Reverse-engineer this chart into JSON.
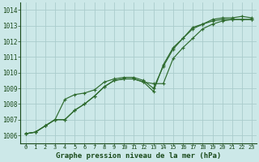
{
  "xlabel": "Graphe pression niveau de la mer (hPa)",
  "background_color": "#cce8e8",
  "grid_color": "#aacccc",
  "line_color": "#2d6a2d",
  "marker_color": "#2d6a2d",
  "text_color": "#1a4a1a",
  "ylim_min": 1005.5,
  "ylim_max": 1014.5,
  "xlim_min": -0.5,
  "xlim_max": 23.5,
  "yticks": [
    1006,
    1007,
    1008,
    1009,
    1010,
    1011,
    1012,
    1013,
    1014
  ],
  "xticks": [
    0,
    1,
    2,
    3,
    4,
    5,
    6,
    7,
    8,
    9,
    10,
    11,
    12,
    13,
    14,
    15,
    16,
    17,
    18,
    19,
    20,
    21,
    22,
    23
  ],
  "series": [
    [
      1006.1,
      1006.2,
      1006.6,
      1007.0,
      1007.0,
      1007.6,
      1008.0,
      1008.5,
      1009.1,
      1009.5,
      1009.6,
      1009.6,
      1009.4,
      1008.8,
      1010.5,
      1011.6,
      1012.2,
      1012.8,
      1013.1,
      1013.3,
      1013.4,
      1013.4,
      1013.4,
      1013.4
    ],
    [
      1006.1,
      1006.2,
      1006.6,
      1007.0,
      1007.0,
      1007.6,
      1008.0,
      1008.5,
      1009.1,
      1009.5,
      1009.6,
      1009.6,
      1009.4,
      1009.3,
      1009.3,
      1010.9,
      1011.6,
      1012.2,
      1012.8,
      1013.1,
      1013.3,
      1013.4,
      1013.4,
      1013.4
    ],
    [
      1006.1,
      1006.2,
      1006.6,
      1007.0,
      1008.3,
      1008.6,
      1008.7,
      1008.9,
      1009.4,
      1009.6,
      1009.7,
      1009.7,
      1009.5,
      1009.0,
      1010.4,
      1011.5,
      1012.2,
      1012.9,
      1013.1,
      1013.4,
      1013.5,
      1013.5,
      1013.6,
      1013.5
    ]
  ]
}
